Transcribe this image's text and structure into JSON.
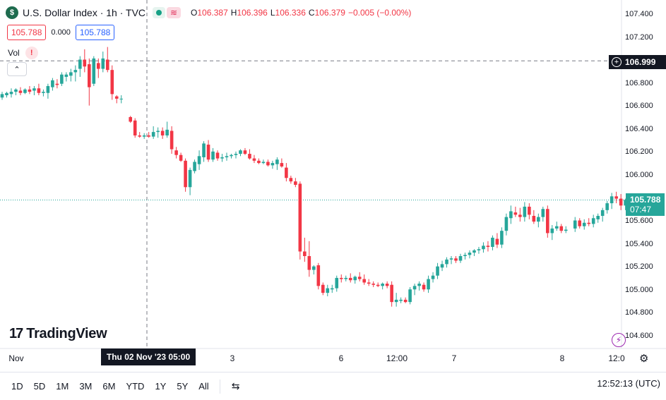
{
  "header": {
    "symbol_logo": "$",
    "title": "U.S. Dollar Index · 1h · TVC",
    "wave_glyph": "≋",
    "ohlc": {
      "o_label": "O",
      "o": "106.387",
      "h_label": "H",
      "h": "106.396",
      "l_label": "L",
      "l": "106.336",
      "c_label": "C",
      "c": "106.379",
      "change": "−0.005 (−0.00%)"
    }
  },
  "trade": {
    "sell": "105.788",
    "spread": "0.000",
    "buy": "105.788"
  },
  "volume": {
    "label": "Vol",
    "warning_glyph": "!"
  },
  "collapse_glyph": "⌃",
  "brand": {
    "mark": "17",
    "name": "TradingView"
  },
  "price_axis": {
    "ticks": [
      "107.400",
      "107.200",
      "106.800",
      "106.600",
      "106.400",
      "106.200",
      "106.000",
      "105.600",
      "105.400",
      "105.200",
      "105.000",
      "104.800",
      "104.600"
    ],
    "crosshair_price": "106.999",
    "crosshair_plus": "+",
    "last_price": "105.788",
    "countdown": "07:47",
    "bolt_glyph": "⚡"
  },
  "time_axis": {
    "ticks": [
      "Nov",
      "3",
      "6",
      "12:00",
      "7",
      "8",
      "12:0"
    ],
    "cursor_label": "Thu 02 Nov '23   05:00",
    "gear_glyph": "⚙"
  },
  "toolbar": {
    "ranges": [
      "1D",
      "5D",
      "1M",
      "3M",
      "6M",
      "YTD",
      "1Y",
      "5Y",
      "All"
    ],
    "calendar_glyph": "⇆",
    "clock": "12:52:13 (UTC)"
  },
  "colors": {
    "up": "#26a69a",
    "down": "#f23645",
    "crosshair": "#787b86",
    "last_line": "#26a69a"
  },
  "chart_data": {
    "type": "candlestick",
    "title": "U.S. Dollar Index · 1h · TVC",
    "xlabel": "",
    "ylabel": "",
    "ylim": [
      104.53,
      107.5
    ],
    "crosshair_price": 106.999,
    "last_price": 105.788,
    "candles": [
      {
        "o": 106.68,
        "h": 106.73,
        "l": 106.66,
        "c": 106.71
      },
      {
        "o": 106.7,
        "h": 106.73,
        "l": 106.68,
        "c": 106.72
      },
      {
        "o": 106.71,
        "h": 106.76,
        "l": 106.68,
        "c": 106.73
      },
      {
        "o": 106.73,
        "h": 106.76,
        "l": 106.7,
        "c": 106.75
      },
      {
        "o": 106.74,
        "h": 106.77,
        "l": 106.7,
        "c": 106.72
      },
      {
        "o": 106.72,
        "h": 106.76,
        "l": 106.71,
        "c": 106.75
      },
      {
        "o": 106.75,
        "h": 106.78,
        "l": 106.71,
        "c": 106.73
      },
      {
        "o": 106.74,
        "h": 106.78,
        "l": 106.7,
        "c": 106.76
      },
      {
        "o": 106.76,
        "h": 106.8,
        "l": 106.7,
        "c": 106.72
      },
      {
        "o": 106.72,
        "h": 106.75,
        "l": 106.69,
        "c": 106.73
      },
      {
        "o": 106.72,
        "h": 106.8,
        "l": 106.67,
        "c": 106.78
      },
      {
        "o": 106.77,
        "h": 106.85,
        "l": 106.74,
        "c": 106.83
      },
      {
        "o": 106.8,
        "h": 106.84,
        "l": 106.76,
        "c": 106.79
      },
      {
        "o": 106.8,
        "h": 106.9,
        "l": 106.78,
        "c": 106.88
      },
      {
        "o": 106.86,
        "h": 106.9,
        "l": 106.82,
        "c": 106.88
      },
      {
        "o": 106.87,
        "h": 106.93,
        "l": 106.82,
        "c": 106.9
      },
      {
        "o": 106.9,
        "h": 106.96,
        "l": 106.82,
        "c": 106.92
      },
      {
        "o": 106.93,
        "h": 107.04,
        "l": 106.86,
        "c": 107.01
      },
      {
        "o": 107.01,
        "h": 107.1,
        "l": 106.9,
        "c": 106.95
      },
      {
        "o": 106.97,
        "h": 107.02,
        "l": 106.61,
        "c": 106.77
      },
      {
        "o": 106.8,
        "h": 107.04,
        "l": 106.78,
        "c": 107.02
      },
      {
        "o": 106.98,
        "h": 107.02,
        "l": 106.85,
        "c": 106.93
      },
      {
        "o": 106.93,
        "h": 107.08,
        "l": 106.9,
        "c": 107.02
      },
      {
        "o": 107.01,
        "h": 107.12,
        "l": 106.9,
        "c": 106.92
      },
      {
        "o": 106.92,
        "h": 106.96,
        "l": 106.66,
        "c": 106.71
      },
      {
        "o": 106.69,
        "h": 106.7,
        "l": 106.63,
        "c": 106.67
      },
      {
        "o": 106.67,
        "h": 106.7,
        "l": 106.63,
        "c": 106.67
      },
      null,
      {
        "o": 106.51,
        "h": 106.52,
        "l": 106.46,
        "c": 106.47
      },
      {
        "o": 106.48,
        "h": 106.5,
        "l": 106.33,
        "c": 106.35
      },
      {
        "o": 106.35,
        "h": 106.38,
        "l": 106.33,
        "c": 106.34
      },
      {
        "o": 106.34,
        "h": 106.37,
        "l": 106.32,
        "c": 106.35
      },
      {
        "o": 106.35,
        "h": 106.38,
        "l": 106.33,
        "c": 106.34
      },
      {
        "o": 106.34,
        "h": 106.43,
        "l": 106.32,
        "c": 106.38
      },
      {
        "o": 106.38,
        "h": 106.42,
        "l": 106.33,
        "c": 106.39
      },
      {
        "o": 106.39,
        "h": 106.42,
        "l": 106.32,
        "c": 106.35
      },
      {
        "o": 106.35,
        "h": 106.47,
        "l": 106.33,
        "c": 106.4
      },
      {
        "o": 106.39,
        "h": 106.43,
        "l": 106.19,
        "c": 106.23
      },
      {
        "o": 106.22,
        "h": 106.25,
        "l": 106.15,
        "c": 106.18
      },
      {
        "o": 106.18,
        "h": 106.2,
        "l": 106.12,
        "c": 106.13
      },
      {
        "o": 106.13,
        "h": 106.15,
        "l": 105.86,
        "c": 105.9
      },
      {
        "o": 105.9,
        "h": 106.07,
        "l": 105.83,
        "c": 106.05
      },
      {
        "o": 106.04,
        "h": 106.14,
        "l": 106.02,
        "c": 106.12
      },
      {
        "o": 106.1,
        "h": 106.22,
        "l": 106.05,
        "c": 106.17
      },
      {
        "o": 106.16,
        "h": 106.3,
        "l": 106.12,
        "c": 106.28
      },
      {
        "o": 106.27,
        "h": 106.31,
        "l": 106.12,
        "c": 106.14
      },
      {
        "o": 106.14,
        "h": 106.24,
        "l": 106.12,
        "c": 106.21
      },
      {
        "o": 106.2,
        "h": 106.22,
        "l": 106.13,
        "c": 106.15
      },
      {
        "o": 106.15,
        "h": 106.19,
        "l": 106.12,
        "c": 106.16
      },
      {
        "o": 106.16,
        "h": 106.2,
        "l": 106.13,
        "c": 106.17
      },
      {
        "o": 106.17,
        "h": 106.19,
        "l": 106.15,
        "c": 106.18
      },
      {
        "o": 106.18,
        "h": 106.21,
        "l": 106.15,
        "c": 106.19
      },
      {
        "o": 106.19,
        "h": 106.23,
        "l": 106.17,
        "c": 106.22
      },
      {
        "o": 106.22,
        "h": 106.24,
        "l": 106.18,
        "c": 106.19
      },
      {
        "o": 106.19,
        "h": 106.23,
        "l": 106.14,
        "c": 106.15
      },
      {
        "o": 106.15,
        "h": 106.18,
        "l": 106.11,
        "c": 106.13
      },
      {
        "o": 106.13,
        "h": 106.15,
        "l": 106.1,
        "c": 106.11
      },
      {
        "o": 106.11,
        "h": 106.14,
        "l": 106.1,
        "c": 106.12
      },
      {
        "o": 106.12,
        "h": 106.14,
        "l": 106.08,
        "c": 106.09
      },
      {
        "o": 106.09,
        "h": 106.13,
        "l": 106.06,
        "c": 106.11
      },
      {
        "o": 106.1,
        "h": 106.16,
        "l": 106.05,
        "c": 106.14
      },
      {
        "o": 106.11,
        "h": 106.15,
        "l": 106.07,
        "c": 106.08
      },
      {
        "o": 106.07,
        "h": 106.11,
        "l": 105.95,
        "c": 105.98
      },
      {
        "o": 105.98,
        "h": 106.0,
        "l": 105.93,
        "c": 105.95
      },
      {
        "o": 105.95,
        "h": 105.98,
        "l": 105.9,
        "c": 105.92
      },
      {
        "o": 105.93,
        "h": 105.95,
        "l": 105.27,
        "c": 105.34
      },
      {
        "o": 105.34,
        "h": 105.46,
        "l": 105.25,
        "c": 105.3
      },
      {
        "o": 105.3,
        "h": 105.43,
        "l": 105.12,
        "c": 105.18
      },
      {
        "o": 105.18,
        "h": 105.22,
        "l": 105.14,
        "c": 105.21
      },
      {
        "o": 105.22,
        "h": 105.24,
        "l": 105.01,
        "c": 105.04
      },
      {
        "o": 105.05,
        "h": 105.07,
        "l": 104.96,
        "c": 104.98
      },
      {
        "o": 104.98,
        "h": 105.05,
        "l": 104.95,
        "c": 105.02
      },
      {
        "o": 105.01,
        "h": 105.05,
        "l": 104.98,
        "c": 105.02
      },
      {
        "o": 105.02,
        "h": 105.13,
        "l": 104.99,
        "c": 105.11
      },
      {
        "o": 105.11,
        "h": 105.14,
        "l": 105.07,
        "c": 105.1
      },
      {
        "o": 105.1,
        "h": 105.13,
        "l": 105.08,
        "c": 105.11
      },
      {
        "o": 105.11,
        "h": 105.15,
        "l": 105.07,
        "c": 105.09
      },
      {
        "o": 105.09,
        "h": 105.13,
        "l": 105.06,
        "c": 105.12
      },
      {
        "o": 105.12,
        "h": 105.16,
        "l": 105.08,
        "c": 105.1
      },
      {
        "o": 105.1,
        "h": 105.14,
        "l": 105.05,
        "c": 105.07
      },
      {
        "o": 105.07,
        "h": 105.1,
        "l": 105.04,
        "c": 105.06
      },
      {
        "o": 105.06,
        "h": 105.08,
        "l": 105.03,
        "c": 105.05
      },
      {
        "o": 105.05,
        "h": 105.07,
        "l": 105.03,
        "c": 105.04
      },
      {
        "o": 105.04,
        "h": 105.07,
        "l": 105.01,
        "c": 105.06
      },
      {
        "o": 105.06,
        "h": 105.08,
        "l": 105.02,
        "c": 105.04
      },
      {
        "o": 105.05,
        "h": 105.08,
        "l": 104.86,
        "c": 104.9
      },
      {
        "o": 104.9,
        "h": 104.98,
        "l": 104.86,
        "c": 104.92
      },
      {
        "o": 104.91,
        "h": 104.94,
        "l": 104.89,
        "c": 104.92
      },
      {
        "o": 104.92,
        "h": 104.94,
        "l": 104.89,
        "c": 104.9
      },
      {
        "o": 104.9,
        "h": 105.03,
        "l": 104.88,
        "c": 105.01
      },
      {
        "o": 105.01,
        "h": 105.06,
        "l": 104.96,
        "c": 105.04
      },
      {
        "o": 105.04,
        "h": 105.08,
        "l": 105.0,
        "c": 105.06
      },
      {
        "o": 105.05,
        "h": 105.07,
        "l": 104.99,
        "c": 105.01
      },
      {
        "o": 105.01,
        "h": 105.13,
        "l": 104.98,
        "c": 105.1
      },
      {
        "o": 105.1,
        "h": 105.16,
        "l": 105.07,
        "c": 105.13
      },
      {
        "o": 105.13,
        "h": 105.24,
        "l": 105.1,
        "c": 105.21
      },
      {
        "o": 105.2,
        "h": 105.26,
        "l": 105.17,
        "c": 105.23
      },
      {
        "o": 105.23,
        "h": 105.29,
        "l": 105.2,
        "c": 105.27
      },
      {
        "o": 105.27,
        "h": 105.3,
        "l": 105.23,
        "c": 105.28
      },
      {
        "o": 105.28,
        "h": 105.3,
        "l": 105.24,
        "c": 105.26
      },
      {
        "o": 105.26,
        "h": 105.32,
        "l": 105.24,
        "c": 105.3
      },
      {
        "o": 105.3,
        "h": 105.33,
        "l": 105.27,
        "c": 105.31
      },
      {
        "o": 105.31,
        "h": 105.35,
        "l": 105.28,
        "c": 105.33
      },
      {
        "o": 105.33,
        "h": 105.36,
        "l": 105.3,
        "c": 105.35
      },
      {
        "o": 105.35,
        "h": 105.38,
        "l": 105.32,
        "c": 105.36
      },
      {
        "o": 105.36,
        "h": 105.42,
        "l": 105.33,
        "c": 105.39
      },
      {
        "o": 105.39,
        "h": 105.43,
        "l": 105.34,
        "c": 105.38
      },
      {
        "o": 105.38,
        "h": 105.48,
        "l": 105.35,
        "c": 105.46
      },
      {
        "o": 105.45,
        "h": 105.5,
        "l": 105.37,
        "c": 105.4
      },
      {
        "o": 105.4,
        "h": 105.55,
        "l": 105.37,
        "c": 105.52
      },
      {
        "o": 105.52,
        "h": 105.67,
        "l": 105.48,
        "c": 105.64
      },
      {
        "o": 105.63,
        "h": 105.74,
        "l": 105.58,
        "c": 105.69
      },
      {
        "o": 105.68,
        "h": 105.73,
        "l": 105.64,
        "c": 105.66
      },
      {
        "o": 105.66,
        "h": 105.72,
        "l": 105.6,
        "c": 105.64
      },
      {
        "o": 105.64,
        "h": 105.77,
        "l": 105.6,
        "c": 105.73
      },
      {
        "o": 105.73,
        "h": 105.76,
        "l": 105.62,
        "c": 105.66
      },
      {
        "o": 105.65,
        "h": 105.7,
        "l": 105.58,
        "c": 105.6
      },
      {
        "o": 105.6,
        "h": 105.67,
        "l": 105.55,
        "c": 105.64
      },
      {
        "o": 105.64,
        "h": 105.73,
        "l": 105.6,
        "c": 105.71
      },
      {
        "o": 105.71,
        "h": 105.74,
        "l": 105.46,
        "c": 105.5
      },
      {
        "o": 105.5,
        "h": 105.57,
        "l": 105.44,
        "c": 105.54
      },
      {
        "o": 105.54,
        "h": 105.6,
        "l": 105.52,
        "c": 105.56
      },
      {
        "o": 105.56,
        "h": 105.58,
        "l": 105.5,
        "c": 105.52
      },
      {
        "o": 105.52,
        "h": 105.56,
        "l": 105.5,
        "c": 105.53
      },
      null,
      {
        "o": 105.54,
        "h": 105.64,
        "l": 105.51,
        "c": 105.61
      },
      {
        "o": 105.61,
        "h": 105.63,
        "l": 105.54,
        "c": 105.56
      },
      {
        "o": 105.56,
        "h": 105.62,
        "l": 105.53,
        "c": 105.59
      },
      {
        "o": 105.59,
        "h": 105.63,
        "l": 105.56,
        "c": 105.58
      },
      {
        "o": 105.58,
        "h": 105.66,
        "l": 105.55,
        "c": 105.63
      },
      {
        "o": 105.62,
        "h": 105.67,
        "l": 105.59,
        "c": 105.65
      },
      {
        "o": 105.65,
        "h": 105.72,
        "l": 105.6,
        "c": 105.7
      },
      {
        "o": 105.7,
        "h": 105.78,
        "l": 105.67,
        "c": 105.76
      },
      {
        "o": 105.76,
        "h": 105.85,
        "l": 105.71,
        "c": 105.82
      },
      {
        "o": 105.82,
        "h": 105.86,
        "l": 105.76,
        "c": 105.8
      },
      {
        "o": 105.8,
        "h": 105.84,
        "l": 105.7,
        "c": 105.74
      },
      {
        "o": 105.74,
        "h": 105.8,
        "l": 105.7,
        "c": 105.79
      }
    ]
  }
}
